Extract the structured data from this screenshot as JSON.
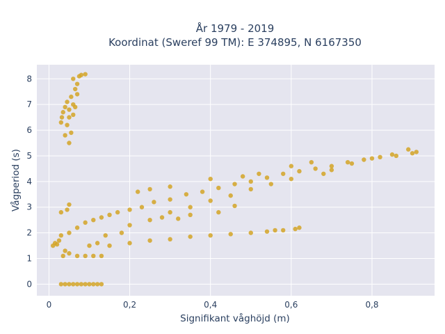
{
  "chart_data": {
    "type": "scatter",
    "title_line1": "År 1979 - 2019",
    "title_line2": "Koordinat (Sweref 99 TM): E 374895, N 6167350",
    "xlabel": "Signifikant våghöjd (m)",
    "ylabel": "Vågperiod (s)",
    "xlim": [
      -0.03,
      0.955
    ],
    "ylim": [
      -0.45,
      8.55
    ],
    "x_ticks": [
      0,
      0.2,
      0.4,
      0.6,
      0.8
    ],
    "x_tick_labels": [
      "0",
      "0,2",
      "0,4",
      "0,6",
      "0,8"
    ],
    "y_ticks": [
      0,
      1,
      2,
      3,
      4,
      5,
      6,
      7,
      8
    ],
    "y_tick_labels": [
      "0",
      "1",
      "2",
      "3",
      "4",
      "5",
      "6",
      "7",
      "8"
    ],
    "grid": true,
    "plot_background": "#e5e5ef",
    "marker_color": "#d4a526",
    "series": [
      {
        "points": [
          [
            0.03,
            6.3
          ],
          [
            0.032,
            6.5
          ],
          [
            0.035,
            6.7
          ],
          [
            0.04,
            6.9
          ],
          [
            0.045,
            7.1
          ],
          [
            0.05,
            6.8
          ],
          [
            0.055,
            7.3
          ],
          [
            0.06,
            7.0
          ],
          [
            0.065,
            7.6
          ],
          [
            0.07,
            7.8
          ],
          [
            0.06,
            8.0
          ],
          [
            0.075,
            8.1
          ],
          [
            0.08,
            8.15
          ],
          [
            0.09,
            8.18
          ],
          [
            0.07,
            7.4
          ],
          [
            0.05,
            6.5
          ],
          [
            0.045,
            6.2
          ],
          [
            0.055,
            5.9
          ],
          [
            0.04,
            5.8
          ],
          [
            0.05,
            5.5
          ],
          [
            0.06,
            6.6
          ],
          [
            0.065,
            6.9
          ],
          [
            0.03,
            0.0
          ],
          [
            0.04,
            0.0
          ],
          [
            0.05,
            0.0
          ],
          [
            0.06,
            0.0
          ],
          [
            0.07,
            0.0
          ],
          [
            0.08,
            0.0
          ],
          [
            0.09,
            0.0
          ],
          [
            0.1,
            0.0
          ],
          [
            0.11,
            0.0
          ],
          [
            0.12,
            0.0
          ],
          [
            0.13,
            0.0
          ],
          [
            0.01,
            1.5
          ],
          [
            0.015,
            1.6
          ],
          [
            0.02,
            1.55
          ],
          [
            0.025,
            1.7
          ],
          [
            0.03,
            1.9
          ],
          [
            0.03,
            2.8
          ],
          [
            0.045,
            2.9
          ],
          [
            0.05,
            3.1
          ],
          [
            0.04,
            1.3
          ],
          [
            0.035,
            1.1
          ],
          [
            0.05,
            1.2
          ],
          [
            0.07,
            1.1
          ],
          [
            0.09,
            1.1
          ],
          [
            0.11,
            1.1
          ],
          [
            0.13,
            1.1
          ],
          [
            0.05,
            2.0
          ],
          [
            0.07,
            2.2
          ],
          [
            0.09,
            2.4
          ],
          [
            0.11,
            2.5
          ],
          [
            0.13,
            2.6
          ],
          [
            0.15,
            2.7
          ],
          [
            0.17,
            2.8
          ],
          [
            0.2,
            2.9
          ],
          [
            0.23,
            3.0
          ],
          [
            0.26,
            3.2
          ],
          [
            0.3,
            3.3
          ],
          [
            0.34,
            3.5
          ],
          [
            0.38,
            3.6
          ],
          [
            0.42,
            3.75
          ],
          [
            0.46,
            3.9
          ],
          [
            0.5,
            4.0
          ],
          [
            0.54,
            4.15
          ],
          [
            0.58,
            4.3
          ],
          [
            0.62,
            4.4
          ],
          [
            0.66,
            4.5
          ],
          [
            0.7,
            4.6
          ],
          [
            0.74,
            4.75
          ],
          [
            0.78,
            4.85
          ],
          [
            0.82,
            4.95
          ],
          [
            0.86,
            5.0
          ],
          [
            0.9,
            5.1
          ],
          [
            0.91,
            5.15
          ],
          [
            0.89,
            5.25
          ],
          [
            0.85,
            5.05
          ],
          [
            0.8,
            4.9
          ],
          [
            0.75,
            4.7
          ],
          [
            0.7,
            4.45
          ],
          [
            0.68,
            4.3
          ],
          [
            0.6,
            4.1
          ],
          [
            0.55,
            3.9
          ],
          [
            0.5,
            3.7
          ],
          [
            0.45,
            3.45
          ],
          [
            0.4,
            3.25
          ],
          [
            0.35,
            3.0
          ],
          [
            0.3,
            2.8
          ],
          [
            0.28,
            2.6
          ],
          [
            0.25,
            2.5
          ],
          [
            0.2,
            2.3
          ],
          [
            0.18,
            2.0
          ],
          [
            0.14,
            1.9
          ],
          [
            0.12,
            1.6
          ],
          [
            0.1,
            1.5
          ],
          [
            0.15,
            1.5
          ],
          [
            0.2,
            1.6
          ],
          [
            0.25,
            1.7
          ],
          [
            0.3,
            1.75
          ],
          [
            0.35,
            1.85
          ],
          [
            0.4,
            1.9
          ],
          [
            0.45,
            1.95
          ],
          [
            0.5,
            2.0
          ],
          [
            0.54,
            2.05
          ],
          [
            0.56,
            2.1
          ],
          [
            0.58,
            2.1
          ],
          [
            0.61,
            2.15
          ],
          [
            0.62,
            2.2
          ],
          [
            0.35,
            2.7
          ],
          [
            0.32,
            2.55
          ],
          [
            0.3,
            3.8
          ],
          [
            0.25,
            3.7
          ],
          [
            0.22,
            3.6
          ],
          [
            0.4,
            4.1
          ],
          [
            0.48,
            4.2
          ],
          [
            0.52,
            4.3
          ],
          [
            0.6,
            4.6
          ],
          [
            0.65,
            4.75
          ],
          [
            0.46,
            3.05
          ],
          [
            0.42,
            2.8
          ]
        ]
      }
    ]
  }
}
